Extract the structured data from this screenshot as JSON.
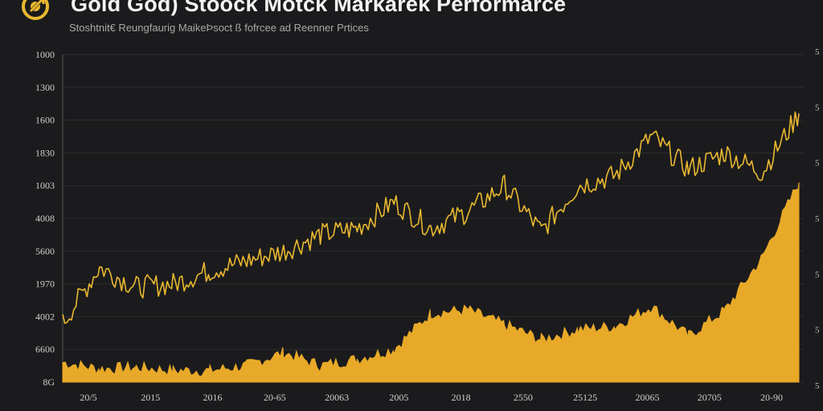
{
  "header": {
    "title": "Gold God) Stoock Motck Markarek Performarce",
    "subtitle": "Stoshtnit€ Reungfaurig MaikeÞsoct ß fofrcee ad Reenner Prtices"
  },
  "colors": {
    "background": "#1b1b1d",
    "line": "#e8b830",
    "area": "#e8a928",
    "grid": "#2c2c2e"
  },
  "icons": {
    "logo": "gold-coin-arrow-icon"
  },
  "chart_data": {
    "type": "area",
    "title": "Gold God) Stoock Motck Markarek Performarce",
    "subtitle": "Stoshtnit€ Reungfaurig MaikeÞsoct ß fofrcee ad Reenner Prtices",
    "ylim": [
      0,
      1000
    ],
    "y_tick_labels": [
      "1000",
      "1300",
      "1600",
      "1830",
      "1003",
      "4008",
      "5600",
      "1970",
      "4002",
      "6600",
      "8G"
    ],
    "x_tick_labels": [
      "20/5",
      "2015",
      "2016",
      "20-65",
      "20063",
      "2005",
      "2018",
      "2550",
      "25125",
      "20065",
      "20705",
      "20-90"
    ],
    "right_tick_labels": [
      "5",
      "5",
      "5",
      "5",
      "5",
      "5",
      "5"
    ],
    "grid": false,
    "legend": "none",
    "series": [
      {
        "type": "line",
        "x": [
          0,
          5,
          10,
          15,
          20,
          25,
          30,
          35,
          40,
          45,
          50,
          55,
          60,
          65,
          70,
          75,
          80,
          85,
          90,
          95,
          100
        ],
        "values": [
          180,
          350,
          290,
          300,
          340,
          370,
          400,
          450,
          470,
          550,
          470,
          520,
          600,
          460,
          600,
          630,
          750,
          650,
          700,
          640,
          820
        ]
      },
      {
        "type": "area",
        "x": [
          0,
          5,
          10,
          15,
          20,
          25,
          30,
          35,
          40,
          45,
          50,
          55,
          60,
          65,
          70,
          75,
          80,
          85,
          90,
          95,
          100
        ],
        "values": [
          60,
          40,
          45,
          35,
          35,
          50,
          90,
          50,
          70,
          100,
          210,
          220,
          175,
          130,
          160,
          170,
          230,
          140,
          220,
          380,
          610
        ]
      }
    ]
  }
}
